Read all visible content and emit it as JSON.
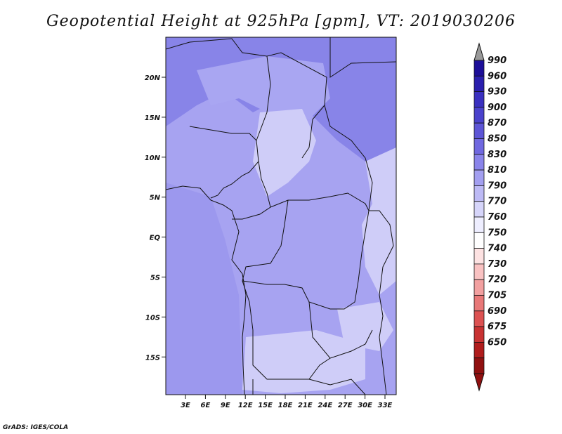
{
  "title": "Geopotential Height at 925hPa [gpm], VT: 2019030206",
  "credit": "GrADS: IGES/COLA",
  "lat_ticks": [
    "20N",
    "15N",
    "10N",
    "5N",
    "EQ",
    "5S",
    "10S",
    "15S"
  ],
  "lon_ticks": [
    "3E",
    "6E",
    "9E",
    "12E",
    "15E",
    "18E",
    "21E",
    "24E",
    "27E",
    "30E",
    "33E"
  ],
  "colorbar": {
    "labels": [
      "990",
      "960",
      "930",
      "900",
      "870",
      "850",
      "830",
      "810",
      "790",
      "770",
      "760",
      "750",
      "740",
      "730",
      "720",
      "705",
      "690",
      "675",
      "650"
    ],
    "colors": [
      "#1c0e98",
      "#2a1fae",
      "#3a30c0",
      "#4a42cc",
      "#5d55d6",
      "#7068e0",
      "#8a84ea",
      "#a39ff0",
      "#bdbaf5",
      "#d6d5fa",
      "#eeeeff",
      "#ffffff",
      "#fde2e2",
      "#f9c2c2",
      "#f2a0a0",
      "#e87878",
      "#dc5252",
      "#c83232",
      "#b01c1c",
      "#901010"
    ],
    "top_arrow_color": "#999999"
  },
  "fields": {
    "north_band": "#8884e8",
    "mid_band": "#a9a6f2",
    "low_band": "#cfcdf8",
    "ocean": "#a7a3f1"
  }
}
